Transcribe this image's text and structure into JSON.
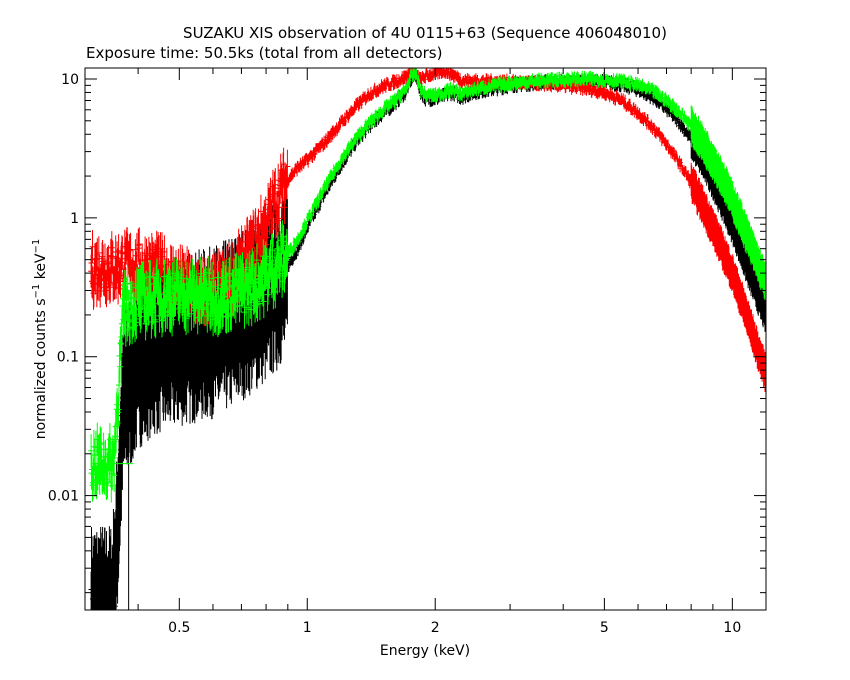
{
  "chart_data": {
    "type": "scatter",
    "title": "SUZAKU XIS observation of 4U 0115+63 (Sequence 406048010)",
    "subtitle": "Exposure time: 50.5ks (total from all detectors)",
    "xlabel": "Energy (keV)",
    "ylabel_main": "normalized counts s",
    "ylabel_mid": " keV",
    "ylabel_sup": "−1",
    "xscale": "log",
    "yscale": "log",
    "xlim": [
      0.3,
      12
    ],
    "ylim": [
      0.0015,
      12
    ],
    "xticks": [
      {
        "v": 0.5,
        "label": "0.5"
      },
      {
        "v": 1,
        "label": "1"
      },
      {
        "v": 2,
        "label": "2"
      },
      {
        "v": 5,
        "label": "5"
      },
      {
        "v": 10,
        "label": "10"
      }
    ],
    "yticks": [
      {
        "v": 0.01,
        "label": "0.01"
      },
      {
        "v": 0.1,
        "label": "0.1"
      },
      {
        "v": 1,
        "label": "1"
      },
      {
        "v": 10,
        "label": "10"
      }
    ],
    "grid": false,
    "legend": "none",
    "series": [
      {
        "color": "#ff0000",
        "x": [
          0.31,
          0.33,
          0.35,
          0.37,
          0.4,
          0.43,
          0.46,
          0.5,
          0.55,
          0.6,
          0.65,
          0.7,
          0.75,
          0.8,
          0.85,
          0.9,
          0.95,
          1.0,
          1.1,
          1.2,
          1.3,
          1.4,
          1.5,
          1.6,
          1.7,
          1.75,
          1.8,
          1.85,
          1.9,
          2.0,
          2.1,
          2.2,
          2.3,
          2.5,
          2.8,
          3.0,
          3.5,
          4.0,
          4.5,
          5.0,
          5.5,
          6.0,
          6.5,
          7.0,
          7.5,
          8.0,
          8.5,
          9.0,
          9.5,
          10.0,
          10.5,
          11.0,
          11.5,
          12.0
        ],
        "y": [
          0.42,
          0.44,
          0.43,
          0.45,
          0.44,
          0.43,
          0.4,
          0.34,
          0.3,
          0.3,
          0.34,
          0.45,
          0.62,
          0.9,
          1.4,
          1.9,
          2.3,
          2.6,
          3.5,
          4.8,
          6.3,
          7.8,
          8.8,
          9.5,
          10.3,
          11.2,
          10.8,
          9.8,
          10.5,
          11.0,
          11.5,
          10.8,
          9.8,
          9.6,
          9.6,
          9.5,
          9.3,
          9.0,
          8.6,
          8.0,
          7.0,
          5.7,
          4.5,
          3.4,
          2.5,
          1.8,
          1.25,
          0.85,
          0.58,
          0.4,
          0.26,
          0.17,
          0.11,
          0.075
        ]
      },
      {
        "color": "#000000",
        "x": [
          0.31,
          0.33,
          0.35,
          0.37,
          0.4,
          0.43,
          0.46,
          0.5,
          0.55,
          0.6,
          0.65,
          0.7,
          0.75,
          0.8,
          0.85,
          0.9,
          0.95,
          1.0,
          1.1,
          1.2,
          1.3,
          1.4,
          1.5,
          1.6,
          1.7,
          1.75,
          1.8,
          1.85,
          1.9,
          2.0,
          2.1,
          2.2,
          2.3,
          2.5,
          2.8,
          3.0,
          3.5,
          4.0,
          4.5,
          5.0,
          5.5,
          6.0,
          6.5,
          7.0,
          7.5,
          8.0,
          8.5,
          9.0,
          9.5,
          10.0,
          10.5,
          11.0,
          11.5,
          12.0
        ],
        "y": [
          0.0015,
          0.0015,
          0.0015,
          0.05,
          0.09,
          0.11,
          0.12,
          0.13,
          0.14,
          0.15,
          0.17,
          0.2,
          0.23,
          0.27,
          0.33,
          0.45,
          0.6,
          0.85,
          1.5,
          2.4,
          3.5,
          4.6,
          5.6,
          6.6,
          8.0,
          9.8,
          10.8,
          8.0,
          7.2,
          7.2,
          7.6,
          8.0,
          7.4,
          8.1,
          8.6,
          9.0,
          9.4,
          9.6,
          9.6,
          9.5,
          9.1,
          8.4,
          7.4,
          6.1,
          4.9,
          3.7,
          2.7,
          1.9,
          1.3,
          0.9,
          0.6,
          0.4,
          0.28,
          0.2
        ]
      },
      {
        "color": "#00ff00",
        "x": [
          0.31,
          0.33,
          0.35,
          0.37,
          0.4,
          0.43,
          0.46,
          0.5,
          0.55,
          0.6,
          0.65,
          0.7,
          0.75,
          0.8,
          0.85,
          0.9,
          0.95,
          1.0,
          1.1,
          1.2,
          1.3,
          1.4,
          1.5,
          1.6,
          1.7,
          1.75,
          1.8,
          1.85,
          1.9,
          2.0,
          2.1,
          2.2,
          2.3,
          2.5,
          2.8,
          3.0,
          3.5,
          4.0,
          4.5,
          5.0,
          5.5,
          6.0,
          6.5,
          7.0,
          7.5,
          8.0,
          8.5,
          9.0,
          9.5,
          10.0,
          10.5,
          11.0,
          11.5,
          12.0
        ],
        "y": [
          0.017,
          0.017,
          0.017,
          0.22,
          0.25,
          0.26,
          0.27,
          0.28,
          0.27,
          0.27,
          0.28,
          0.3,
          0.33,
          0.38,
          0.45,
          0.55,
          0.7,
          0.95,
          1.65,
          2.6,
          3.7,
          4.8,
          5.9,
          6.9,
          8.3,
          10.2,
          11.0,
          8.3,
          7.6,
          7.6,
          8.0,
          8.4,
          7.8,
          8.5,
          9.0,
          9.3,
          9.7,
          9.9,
          10.0,
          9.9,
          9.6,
          9.0,
          8.2,
          7.0,
          5.8,
          4.6,
          3.5,
          2.6,
          1.9,
          1.35,
          0.95,
          0.66,
          0.47,
          0.34
        ]
      }
    ]
  }
}
